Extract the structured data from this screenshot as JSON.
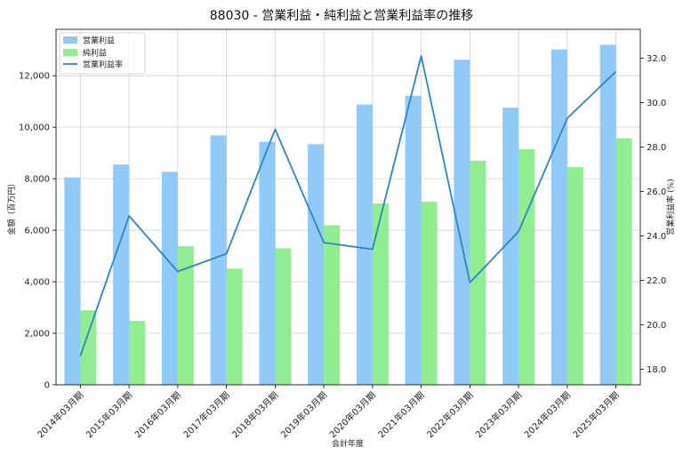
{
  "chart_data": {
    "type": "bar",
    "title": "88030 - 営業利益・純利益と営業利益率の推移",
    "xlabel": "会計年度",
    "ylabel": "金額（百万円）",
    "y2label": "営業利益率 (%)",
    "categories": [
      "2014年03月期",
      "2015年03月期",
      "2016年03月期",
      "2017年03月期",
      "2018年03月期",
      "2019年03月期",
      "2020年03月期",
      "2021年03月期",
      "2022年03月期",
      "2023年03月期",
      "2024年03月期",
      "2025年03月期"
    ],
    "series": [
      {
        "name": "営業利益",
        "kind": "bar",
        "axis": "left",
        "color": "#90CAF9",
        "values": [
          8050,
          8550,
          8270,
          9680,
          9430,
          9340,
          10880,
          11220,
          12620,
          10760,
          13020,
          13200
        ]
      },
      {
        "name": "純利益",
        "kind": "bar",
        "axis": "left",
        "color": "#90EE90",
        "values": [
          2890,
          2480,
          5380,
          4510,
          5300,
          6190,
          7040,
          7110,
          8700,
          9150,
          8450,
          9570
        ]
      },
      {
        "name": "営業利益率",
        "kind": "line",
        "axis": "right",
        "color": "#2E86C1",
        "values": [
          18.6,
          24.9,
          22.4,
          23.2,
          28.8,
          23.7,
          23.4,
          32.1,
          21.9,
          24.2,
          29.3,
          31.4
        ]
      }
    ],
    "ylim": [
      0,
      13800
    ],
    "yticks": [
      0,
      2000,
      4000,
      6000,
      8000,
      10000,
      12000
    ],
    "yticklabels": [
      "0",
      "2,000",
      "4,000",
      "6,000",
      "8,000",
      "10,000",
      "12,000"
    ],
    "y2lim": [
      17.3,
      33.3
    ],
    "y2ticks": [
      18,
      20,
      22,
      24,
      26,
      28,
      30,
      32
    ],
    "y2ticklabels": [
      "18.0",
      "20.0",
      "22.0",
      "24.0",
      "26.0",
      "28.0",
      "30.0",
      "32.0"
    ],
    "grid": true,
    "legend_position": "top-left"
  }
}
